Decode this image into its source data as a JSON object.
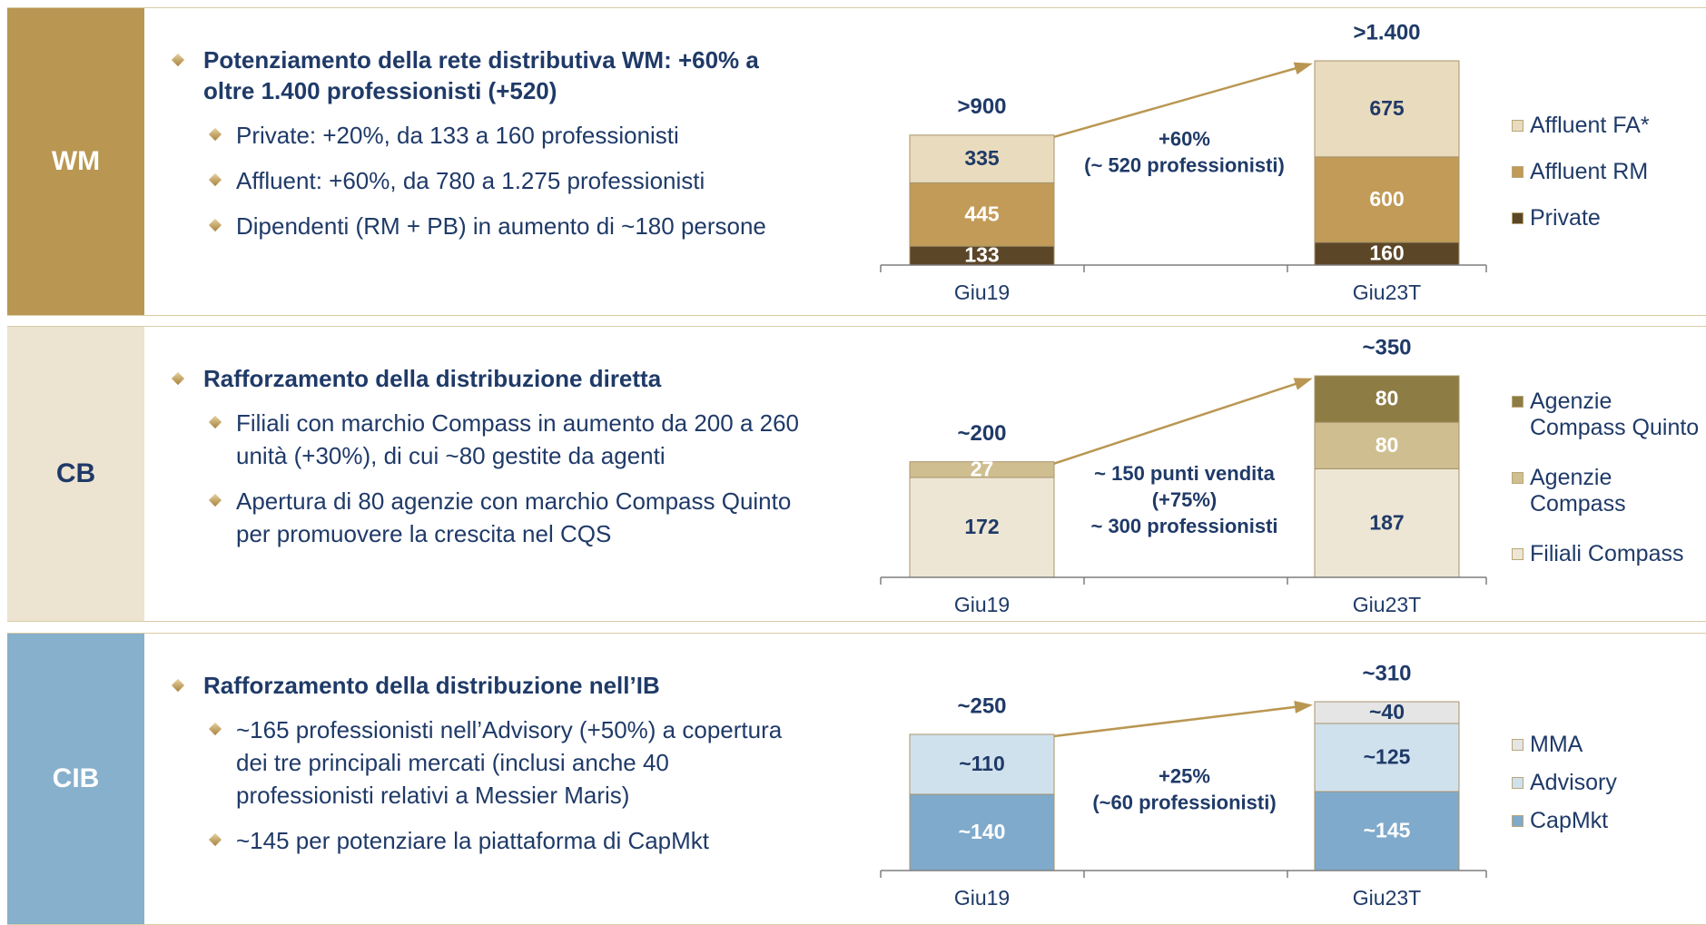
{
  "panels": [
    {
      "label": "WM",
      "heading": "Potenziamento della rete distributiva WM: +60% a oltre 1.400 professionisti (+520)",
      "bullets": [
        "Private: +20%, da 133 a 160 professionisti",
        "Affluent: +60%, da 780 a 1.275 professionisti",
        "Dipendenti (RM + PB) in aumento di ~180 persone"
      ]
    },
    {
      "label": "CB",
      "heading": "Rafforzamento della distribuzione diretta",
      "bullets": [
        "Filiali con marchio Compass in aumento da 200 a 260 unità (+30%), di cui ~80 gestite da agenti",
        "Apertura di 80 agenzie con marchio Compass Quinto per promuovere la crescita nel CQS"
      ]
    },
    {
      "label": "CIB",
      "heading": "Rafforzamento della distribuzione nell’IB",
      "bullets": [
        "~165 professionisti nell’Advisory (+50%) a copertura dei tre principali mercati (inclusi anche 40 professionisti relativi a Messier Maris)",
        "~145 per potenziare la piattaforma di CapMkt"
      ]
    }
  ],
  "chart_data": [
    {
      "type": "stacked_bar",
      "categories": [
        "Giu19",
        "Giu23T"
      ],
      "series": [
        {
          "name": "Private",
          "color": "#5b4628",
          "values": [
            133,
            160
          ]
        },
        {
          "name": "Affluent RM",
          "color": "#c19b57",
          "values": [
            445,
            600
          ]
        },
        {
          "name": "Affluent FA*",
          "color": "#e9dbbd",
          "values": [
            335,
            675
          ]
        }
      ],
      "total_labels": [
        ">900",
        ">1.400"
      ],
      "annotation": [
        "+60%",
        "(~ 520 professionisti)"
      ]
    },
    {
      "type": "stacked_bar",
      "categories": [
        "Giu19",
        "Giu23T"
      ],
      "series": [
        {
          "name": "Filiali Compass",
          "color": "#eee6d4",
          "values": [
            172,
            187
          ]
        },
        {
          "name": "Agenzie Compass",
          "color": "#cfbf90",
          "values": [
            27,
            80
          ]
        },
        {
          "name": "Agenzie Compass Quinto",
          "color": "#8e7c45",
          "values": [
            null,
            80
          ]
        }
      ],
      "total_labels": [
        "~200",
        "~350"
      ],
      "annotation": [
        "~ 150 punti vendita",
        "(+75%)",
        "~ 300 professionisti"
      ]
    },
    {
      "type": "stacked_bar",
      "categories": [
        "Giu19",
        "Giu23T"
      ],
      "series": [
        {
          "name": "CapMkt",
          "color": "#80aacb",
          "values": [
            140,
            145
          ],
          "value_labels": [
            "~140",
            "~145"
          ]
        },
        {
          "name": "Advisory",
          "color": "#d0e1ee",
          "values": [
            110,
            125
          ],
          "value_labels": [
            "~110",
            "~125"
          ]
        },
        {
          "name": "MMA",
          "color": "#e5e5e5",
          "values": [
            null,
            40
          ],
          "value_labels": [
            null,
            "~40"
          ]
        }
      ],
      "total_labels": [
        "~250",
        "~310"
      ],
      "annotation": [
        "+25%",
        "(~60 professionisti)"
      ]
    }
  ]
}
